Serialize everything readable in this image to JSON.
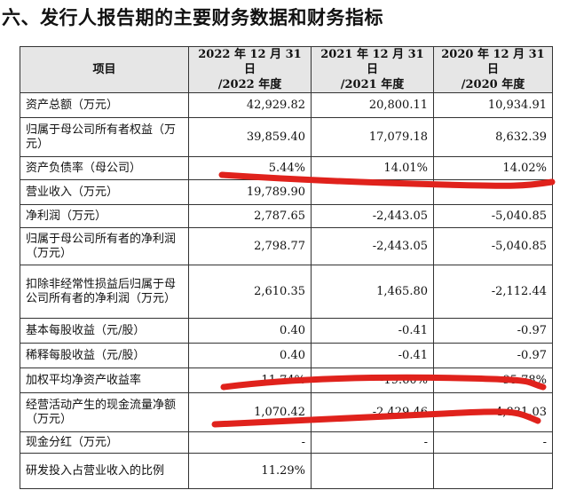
{
  "heading": "六、发行人报告期的主要财务数据和财务指标",
  "table": {
    "header": {
      "item": "项目",
      "col1_line1": "2022 年 12 月 31 日",
      "col1_line2": "/2022 年度",
      "col2_line1": "2021 年 12 月 31 日",
      "col2_line2": "/2021 年度",
      "col3_line1": "2020 年 12 月 31 日",
      "col3_line2": "/2020 年度"
    },
    "rows": [
      {
        "label": "资产总额（万元）",
        "v2022": "42,929.82",
        "v2021": "20,800.11",
        "v2020": "10,934.91"
      },
      {
        "label": "归属于母公司所有者权益（万元）",
        "v2022": "39,859.40",
        "v2021": "17,079.18",
        "v2020": "8,632.39"
      },
      {
        "label": "资产负债率（母公司）",
        "v2022": "5.44%",
        "v2021": "14.01%",
        "v2020": "14.02%"
      },
      {
        "label": "营业收入（万元）",
        "v2022": "19,789.90",
        "v2021": "",
        "v2020": ""
      },
      {
        "label": "净利润（万元）",
        "v2022": "2,787.65",
        "v2021": "-2,443.05",
        "v2020": "-5,040.85"
      },
      {
        "label": "归属于母公司所有者的净利润（万元）",
        "v2022": "2,798.77",
        "v2021": "-2,443.05",
        "v2020": "-5,040.85"
      },
      {
        "label": "扣除非经常性损益后归属于母公司所有者的净利润（万元）",
        "v2022": "2,610.35",
        "v2021": "1,465.80",
        "v2020": "-2,112.44"
      },
      {
        "label": "基本每股收益（元/股）",
        "v2022": "0.40",
        "v2021": "-0.41",
        "v2020": "-0.97"
      },
      {
        "label": "稀释每股收益（元/股）",
        "v2022": "0.40",
        "v2021": "-0.41",
        "v2020": "-0.97"
      },
      {
        "label": "加权平均净资产收益率",
        "v2022": "11.74%",
        "v2021": "-19.60%",
        "v2020": "-95.78%"
      },
      {
        "label": "经营活动产生的现金流量净额（万元）",
        "v2022": "1,070.42",
        "v2021": "-2,429.46",
        "v2020": "-4,831.03"
      },
      {
        "label": "现金分红（万元）",
        "v2022": "-",
        "v2021": "-",
        "v2020": "-"
      },
      {
        "label": "研发投入占营业收入的比例",
        "v2022": "11.29%",
        "v2021": "",
        "v2020": ""
      }
    ]
  },
  "annotation_color": "#e0221c"
}
